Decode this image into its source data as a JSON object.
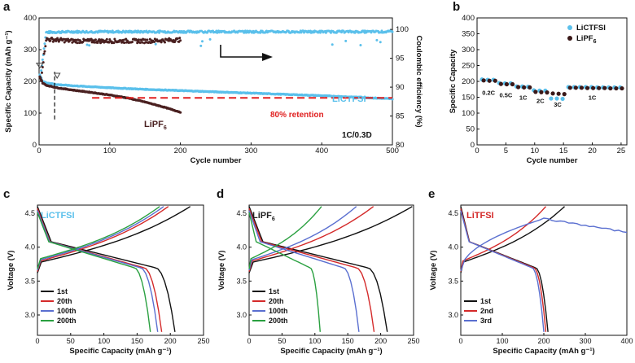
{
  "panels": [
    {
      "id": "a",
      "letter": "a",
      "xlabel": "Cycle number",
      "ylabel": "Specific Capacity (mAh g⁻¹)",
      "y2label": "Coulombic efficiency (%)",
      "xlim": [
        0,
        500
      ],
      "ylim": [
        0,
        400
      ],
      "y2lim": [
        80,
        102
      ],
      "xticks": [
        0,
        100,
        200,
        300,
        400,
        500
      ],
      "yticks": [
        0,
        100,
        200,
        300,
        400
      ],
      "y2ticks": [
        80,
        85,
        90,
        95,
        100
      ],
      "colors": {
        "LiCTFSI": "#5bc0eb",
        "LiPF6": "#4a2020",
        "retention": "#e02020"
      },
      "label_LiCTFSI": "LiCTFSI",
      "label_LiPF6": "LiPF",
      "label_LiPF6_sub": "6",
      "retention_text": "80% retention",
      "rate_text": "1C/0.3D",
      "retention_level": 148,
      "dashed_cycle": 22
    },
    {
      "id": "b",
      "letter": "b",
      "xlabel": "Cycle number",
      "ylabel": "Specific Capacity",
      "xlim": [
        0,
        26
      ],
      "ylim": [
        0,
        400
      ],
      "xticks": [
        0,
        5,
        10,
        15,
        20,
        25
      ],
      "yticks": [
        0,
        50,
        100,
        150,
        200,
        250,
        300,
        350,
        400
      ],
      "legend": [
        {
          "name": "LiCTFSI",
          "color": "#5bc0eb"
        },
        {
          "name": "LiPF",
          "sub": "6",
          "color": "#3a1818"
        }
      ],
      "rate_labels": [
        {
          "text": "0.2C",
          "x": 2,
          "y": 158
        },
        {
          "text": "0.5C",
          "x": 5,
          "y": 150
        },
        {
          "text": "1C",
          "x": 8,
          "y": 142
        },
        {
          "text": "2C",
          "x": 11,
          "y": 132
        },
        {
          "text": "3C",
          "x": 14,
          "y": 120
        },
        {
          "text": "1C",
          "x": 20,
          "y": 142
        }
      ]
    },
    {
      "id": "c",
      "letter": "c",
      "tag": "LiCTFSI",
      "tag_color": "#5bc0eb",
      "xlabel": "Specific Capacity (mAh g⁻¹)",
      "ylabel": "Voltage (V)",
      "xlim": [
        0,
        250
      ],
      "ylim": [
        2.7,
        4.62
      ],
      "xticks": [
        0,
        50,
        100,
        150,
        200,
        250
      ],
      "yticks": [
        3.0,
        3.5,
        4.0,
        4.5
      ],
      "legend": [
        "1st",
        "20th",
        "100th",
        "200th"
      ],
      "colors": [
        "#111111",
        "#d42a2a",
        "#5a6fd0",
        "#2aa040"
      ],
      "caps": [
        230,
        197,
        190,
        184
      ],
      "discharge_caps": [
        207,
        187,
        181,
        170
      ]
    },
    {
      "id": "d",
      "letter": "d",
      "tag": "LiPF",
      "tag_sub": "6",
      "tag_color": "#222222",
      "xlabel": "Specific Capacity (mAh g⁻¹)",
      "ylabel": "Voltage (V)",
      "xlim": [
        0,
        250
      ],
      "ylim": [
        2.7,
        4.62
      ],
      "xticks": [
        0,
        50,
        100,
        150,
        200,
        250
      ],
      "yticks": [
        3.0,
        3.5,
        4.0,
        4.5
      ],
      "legend": [
        "1st",
        "20th",
        "100th",
        "200th"
      ],
      "colors": [
        "#111111",
        "#d42a2a",
        "#5a6fd0",
        "#2aa040"
      ],
      "caps": [
        248,
        189,
        163,
        110
      ],
      "discharge_caps": [
        210,
        190,
        167,
        108
      ]
    },
    {
      "id": "e",
      "letter": "e",
      "tag": "LiTFSI",
      "tag_color": "#d42a2a",
      "xlabel": "Specific Capacity (mAh g⁻¹)",
      "ylabel": "Voltage (V)",
      "xlim": [
        0,
        400
      ],
      "ylim": [
        2.7,
        4.62
      ],
      "xticks": [
        0,
        100,
        200,
        300,
        400
      ],
      "yticks": [
        3.0,
        3.5,
        4.0,
        4.5
      ],
      "legend": [
        "1st",
        "2nd",
        "3rd"
      ],
      "colors": [
        "#111111",
        "#d42a2a",
        "#5a6fd0"
      ],
      "caps": [
        250,
        205,
        400
      ],
      "discharge_caps": [
        210,
        205,
        200
      ]
    }
  ],
  "chart_data": [
    {
      "type": "scatter",
      "panel": "a",
      "title": "",
      "xlabel": "Cycle number",
      "ylabel": "Specific Capacity (mAh g⁻¹)",
      "y2label": "Coulombic efficiency (%)",
      "xlim": [
        0,
        500
      ],
      "ylim": [
        0,
        400
      ],
      "y2lim": [
        80,
        102
      ],
      "series": [
        {
          "name": "LiCTFSI capacity",
          "x": [
            1,
            5,
            10,
            25,
            50,
            100,
            150,
            200,
            250,
            300,
            350,
            400,
            450,
            500
          ],
          "values": [
            220,
            200,
            196,
            190,
            186,
            180,
            175,
            171,
            167,
            163,
            159,
            155,
            150,
            145
          ]
        },
        {
          "name": "LiPF6 capacity",
          "x": [
            1,
            5,
            10,
            25,
            50,
            75,
            100,
            125,
            150,
            175,
            200
          ],
          "values": [
            215,
            195,
            188,
            180,
            172,
            165,
            157,
            148,
            135,
            120,
            103
          ]
        },
        {
          "name": "LiCTFSI CE",
          "x": [
            1,
            10,
            50,
            100,
            200,
            300,
            400,
            500
          ],
          "values": [
            91,
            99.5,
            99.6,
            99.6,
            99.6,
            99.6,
            99.6,
            99.6
          ]
        },
        {
          "name": "LiPF6 CE",
          "x": [
            1,
            10,
            50,
            100,
            150,
            200
          ],
          "values": [
            90,
            98.3,
            98,
            98,
            98,
            98.2
          ]
        }
      ],
      "annotations": [
        "80% retention",
        "1C/0.3D",
        "LiCTFSI",
        "LiPF6"
      ]
    },
    {
      "type": "scatter",
      "panel": "b",
      "xlabel": "Cycle number",
      "ylabel": "Specific Capacity",
      "xlim": [
        0,
        26
      ],
      "ylim": [
        0,
        400
      ],
      "x": [
        1,
        2,
        3,
        4,
        5,
        6,
        7,
        8,
        9,
        10,
        11,
        12,
        13,
        14,
        15,
        16,
        17,
        18,
        19,
        20,
        21,
        22,
        23,
        24,
        25
      ],
      "series": [
        {
          "name": "LiCTFSI",
          "values": [
            206,
            205,
            205,
            195,
            194,
            194,
            184,
            184,
            183,
            172,
            171,
            171,
            146,
            146,
            145,
            182,
            182,
            182,
            182,
            182,
            181,
            181,
            181,
            181,
            181
          ]
        },
        {
          "name": "LiPF6",
          "values": [
            203,
            202,
            202,
            192,
            191,
            191,
            182,
            181,
            181,
            167,
            166,
            165,
            162,
            161,
            160,
            180,
            180,
            180,
            179,
            179,
            179,
            179,
            178,
            178,
            178
          ]
        }
      ],
      "rate_labels": [
        "0.2C",
        "0.5C",
        "1C",
        "2C",
        "3C",
        "1C"
      ]
    },
    {
      "type": "line",
      "panel": "c",
      "title": "LiCTFSI",
      "xlabel": "Specific Capacity (mAh g⁻¹)",
      "ylabel": "Voltage (V)",
      "xlim": [
        0,
        250
      ],
      "ylim": [
        2.7,
        4.6
      ],
      "series": [
        {
          "name": "1st",
          "charge_capacity": 230,
          "discharge_capacity": 207
        },
        {
          "name": "20th",
          "charge_capacity": 197,
          "discharge_capacity": 187
        },
        {
          "name": "100th",
          "charge_capacity": 190,
          "discharge_capacity": 181
        },
        {
          "name": "200th",
          "charge_capacity": 184,
          "discharge_capacity": 170
        }
      ]
    },
    {
      "type": "line",
      "panel": "d",
      "title": "LiPF6",
      "xlabel": "Specific Capacity (mAh g⁻¹)",
      "ylabel": "Voltage (V)",
      "xlim": [
        0,
        250
      ],
      "ylim": [
        2.7,
        4.6
      ],
      "series": [
        {
          "name": "1st",
          "charge_capacity": 248,
          "discharge_capacity": 210
        },
        {
          "name": "20th",
          "charge_capacity": 189,
          "discharge_capacity": 190
        },
        {
          "name": "100th",
          "charge_capacity": 163,
          "discharge_capacity": 167
        },
        {
          "name": "200th",
          "charge_capacity": 110,
          "discharge_capacity": 108
        }
      ]
    },
    {
      "type": "line",
      "panel": "e",
      "title": "LiTFSI",
      "xlabel": "Specific Capacity (mAh g⁻¹)",
      "ylabel": "Voltage (V)",
      "xlim": [
        0,
        400
      ],
      "ylim": [
        2.7,
        4.6
      ],
      "series": [
        {
          "name": "1st",
          "charge_capacity": 250,
          "discharge_capacity": 210
        },
        {
          "name": "2nd",
          "charge_capacity": 205,
          "discharge_capacity": 205
        },
        {
          "name": "3rd",
          "charge_capacity": 400,
          "discharge_capacity": 200
        }
      ]
    }
  ]
}
